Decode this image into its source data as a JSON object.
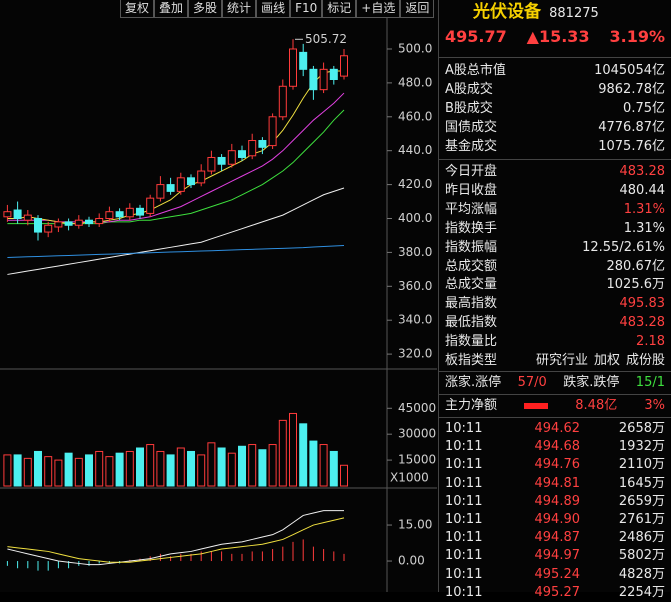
{
  "toolbar": [
    "复权",
    "叠加",
    "多股",
    "统计",
    "画线",
    "F10",
    "标记",
    "+自选",
    "返回"
  ],
  "quote": {
    "name": "光伏设备",
    "code": "881275",
    "price": "495.77",
    "change": "▲15.33",
    "pct": "3.19%"
  },
  "stats": [
    {
      "label": "A股总市值",
      "value": "1045054亿",
      "color": "#e8e8e8"
    },
    {
      "label": "A股成交",
      "value": "9862.78亿",
      "color": "#e8e8e8"
    },
    {
      "label": "B股成交",
      "value": "0.75亿",
      "color": "#e8e8e8"
    },
    {
      "label": "国债成交",
      "value": "4776.87亿",
      "color": "#e8e8e8"
    },
    {
      "label": "基金成交",
      "value": "1075.76亿",
      "color": "#e8e8e8"
    },
    {
      "label": "今日开盘",
      "value": "483.28",
      "color": "#ff4040"
    },
    {
      "label": "昨日收盘",
      "value": "480.44",
      "color": "#e8e8e8"
    },
    {
      "label": "平均涨幅",
      "value": "1.31%",
      "color": "#ff4040"
    },
    {
      "label": "指数换手",
      "value": "1.31%",
      "color": "#e8e8e8"
    },
    {
      "label": "指数振幅",
      "value": "12.55/2.61%",
      "color": "#e8e8e8"
    },
    {
      "label": "总成交额",
      "value": "280.67亿",
      "color": "#e8e8e8"
    },
    {
      "label": "总成交量",
      "value": "1025.6万",
      "color": "#e8e8e8"
    },
    {
      "label": "最高指数",
      "value": "495.83",
      "color": "#ff4040"
    },
    {
      "label": "最低指数",
      "value": "483.28",
      "color": "#ff4040"
    },
    {
      "label": "指数量比",
      "value": "2.18",
      "color": "#ff4040"
    }
  ],
  "sector": {
    "label": "板指类型",
    "items": [
      "研究行业",
      "加权",
      "成份股"
    ]
  },
  "breadth": {
    "up_label": "涨家.涨停",
    "up_value": "57/0",
    "down_label": "跌家.跌停",
    "down_value": "15/1"
  },
  "flow": {
    "label": "主力净额",
    "value": "8.48亿",
    "pct": "3%"
  },
  "trades": [
    [
      "10:11",
      "494.62",
      "2658万"
    ],
    [
      "10:11",
      "494.68",
      "1932万"
    ],
    [
      "10:11",
      "494.76",
      "2110万"
    ],
    [
      "10:11",
      "494.81",
      "1645万"
    ],
    [
      "10:11",
      "494.89",
      "2659万"
    ],
    [
      "10:11",
      "494.90",
      "2761万"
    ],
    [
      "10:11",
      "494.87",
      "2486万"
    ],
    [
      "10:11",
      "494.97",
      "5802万"
    ],
    [
      "10:11",
      "495.24",
      "4828万"
    ],
    [
      "10:11",
      "495.27",
      "2254万"
    ]
  ],
  "chart_data": [
    {
      "type": "candlestick",
      "up_color": "#ff3b3b",
      "down_color": "#4df0f0",
      "open": [
        401,
        405,
        399,
        400,
        392,
        395,
        398,
        396,
        399,
        397,
        400,
        404,
        401,
        406,
        403,
        412,
        420,
        416,
        424,
        421,
        428,
        436,
        432,
        440,
        437,
        446,
        443,
        460,
        478,
        498,
        488,
        476,
        488,
        484
      ],
      "close": [
        404,
        400,
        402,
        392,
        396,
        398,
        396,
        399,
        397,
        400,
        404,
        401,
        406,
        402,
        412,
        420,
        416,
        424,
        420,
        428,
        436,
        432,
        440,
        436,
        446,
        442,
        460,
        478,
        500,
        488,
        476,
        488,
        482,
        496
      ],
      "high": [
        408,
        410,
        405,
        402,
        398,
        400,
        400,
        402,
        401,
        403,
        407,
        406,
        409,
        408,
        414,
        425,
        424,
        427,
        426,
        432,
        440,
        438,
        444,
        443,
        450,
        448,
        462,
        482,
        505.72,
        503,
        490,
        492,
        490,
        500
      ],
      "low": [
        398,
        397,
        396,
        387,
        389,
        392,
        393,
        394,
        395,
        395,
        398,
        399,
        399,
        400,
        401,
        410,
        414,
        414,
        418,
        419,
        426,
        428,
        430,
        434,
        435,
        438,
        441,
        458,
        476,
        484,
        470,
        474,
        479,
        482
      ],
      "lines": [
        {
          "color": "#f0f0f0",
          "values": [
            367,
            368,
            369,
            370,
            371,
            372,
            373,
            374,
            375,
            376,
            377,
            378,
            379,
            380,
            381,
            382,
            383,
            384,
            385,
            386,
            388,
            390,
            392,
            394,
            396,
            398,
            400,
            402,
            405,
            408,
            411,
            414,
            416,
            418
          ]
        },
        {
          "color": "#2f8fe0",
          "values": [
            377,
            377.2,
            377.4,
            377.6,
            377.8,
            378,
            378.2,
            378.4,
            378.6,
            378.8,
            379,
            379.2,
            379.4,
            379.6,
            379.8,
            380,
            380.2,
            380.4,
            380.6,
            380.8,
            381,
            381.2,
            381.4,
            381.6,
            381.8,
            382,
            382.2,
            382.4,
            382.6,
            382.8,
            383.2,
            383.5,
            383.8,
            384.1
          ]
        },
        {
          "color": "#3ee03e",
          "values": [
            397,
            397,
            397,
            397,
            397,
            397,
            397,
            397,
            397,
            397,
            398,
            398,
            398,
            399,
            399,
            400,
            401,
            402,
            403,
            405,
            407,
            409,
            411,
            414,
            417,
            420,
            424,
            428,
            433,
            439,
            445,
            451,
            458,
            464
          ]
        },
        {
          "color": "#e040e0",
          "values": [
            399,
            399,
            399,
            399,
            399,
            398,
            398,
            398,
            398,
            398,
            398,
            399,
            399,
            400,
            401,
            403,
            405,
            407,
            410,
            413,
            416,
            419,
            422,
            425,
            428,
            431,
            435,
            440,
            446,
            452,
            458,
            463,
            468,
            474
          ]
        },
        {
          "color": "#f0e040",
          "values": [
            400,
            400,
            401,
            400,
            399,
            398,
            397,
            397,
            398,
            398,
            399,
            400,
            402,
            403,
            405,
            408,
            411,
            416,
            420,
            422,
            425,
            428,
            431,
            434,
            438,
            440,
            445,
            452,
            461,
            471,
            480,
            486,
            487,
            487
          ]
        }
      ],
      "ylim": [
        311.8,
        517.1
      ],
      "yticks": [
        {
          "value": 500,
          "label": "500.0"
        },
        {
          "value": 480,
          "label": "480.0"
        },
        {
          "value": 460,
          "label": "460.0"
        },
        {
          "value": 440,
          "label": "440.0"
        },
        {
          "value": 420,
          "label": "420.0"
        },
        {
          "value": 400,
          "label": "400.0"
        },
        {
          "value": 380,
          "label": "380.0"
        },
        {
          "value": 360,
          "label": "360.0"
        },
        {
          "value": 340,
          "label": "340.0"
        },
        {
          "value": 320,
          "label": "320.0"
        }
      ]
    },
    {
      "type": "volume",
      "values": [
        18000,
        18000,
        16000,
        20000,
        17000,
        15000,
        19000,
        16000,
        18000,
        20000,
        17000,
        19000,
        20000,
        22000,
        24000,
        20000,
        18000,
        22000,
        20000,
        18000,
        25000,
        22000,
        19000,
        23000,
        24000,
        21000,
        24000,
        38000,
        42000,
        36000,
        26000,
        24000,
        20000,
        12000
      ],
      "ylim": [
        0,
        66000
      ],
      "yticks": [
        45000,
        30000,
        15000
      ],
      "unit_label": "X1000"
    },
    {
      "type": "macd",
      "up_color": "#ff3b3b",
      "down_color": "#4df0f0",
      "values": [
        -2,
        -3,
        -3,
        -4,
        -4,
        -3,
        -3,
        -2,
        -2,
        -1,
        -1,
        -1,
        0.5,
        1,
        2,
        3,
        2,
        3,
        3,
        4,
        4,
        4,
        3,
        3,
        4,
        4,
        5,
        6,
        8,
        9,
        6,
        5,
        4,
        3
      ],
      "lines": [
        {
          "color": "#f0f0f0",
          "values": [
            5,
            4,
            3,
            2,
            1,
            0,
            -0.5,
            -1,
            -1.5,
            -1.5,
            -1,
            -0.5,
            0,
            0.5,
            1,
            2,
            3,
            3.5,
            4,
            5,
            6,
            7,
            7.5,
            8,
            9,
            10,
            11,
            13,
            16,
            19,
            20,
            21,
            21,
            21
          ]
        },
        {
          "color": "#f0e040",
          "values": [
            6,
            5.5,
            5,
            4.5,
            4,
            3,
            2,
            1,
            0.5,
            0,
            -0.5,
            -0.5,
            -0.5,
            0,
            0.5,
            1,
            1.5,
            2,
            2.5,
            3,
            4,
            5,
            5.5,
            6,
            6.5,
            7,
            8,
            9,
            11,
            13,
            15,
            16,
            17,
            18
          ]
        }
      ],
      "ylim": [
        -12.9,
        29.6
      ],
      "yticks": [
        {
          "value": 15,
          "label": "15.00"
        },
        {
          "value": 0,
          "label": "0.00"
        }
      ]
    }
  ]
}
